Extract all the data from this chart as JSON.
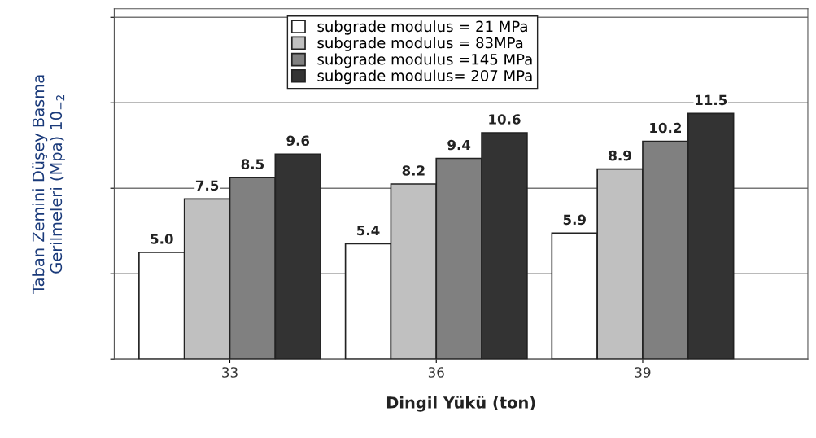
{
  "chart_data": {
    "type": "bar",
    "xlabel": "Dingil Yükü (ton)",
    "ylabel": "Taban Zemini Düşey Basma\nGerilmeleri (Mpa) 10$_{−2}$",
    "categories": [
      "33",
      "36",
      "39"
    ],
    "series": [
      {
        "name": "subgrade modulus = 21 MPa",
        "color": "#ffffff",
        "values": [
          5.0,
          5.4,
          5.9
        ],
        "value_labels": [
          "5.0",
          "5.4",
          "5.9"
        ]
      },
      {
        "name": "subgrade modulus = 83MPa",
        "color": "#c0c0c0",
        "values": [
          7.5,
          8.2,
          8.9
        ],
        "value_labels": [
          "7.5",
          "8.2",
          "8.9"
        ]
      },
      {
        "name": "subgrade modulus =145 MPa",
        "color": "#808080",
        "values": [
          8.5,
          9.4,
          10.2
        ],
        "value_labels": [
          "8.5",
          "9.4",
          "10.2"
        ]
      },
      {
        "name": "subgrade modulus= 207 MPa",
        "color": "#333333",
        "values": [
          9.6,
          10.6,
          11.5
        ],
        "value_labels": [
          "9.6",
          "10.6",
          "11.5"
        ]
      }
    ],
    "ylim": [
      0,
      16.4
    ],
    "yticks": [
      {
        "value": 0,
        "label": null
      },
      {
        "value": 4,
        "label": null
      },
      {
        "value": 8,
        "label": null
      },
      {
        "value": 12,
        "label": null
      },
      {
        "value": 16,
        "label": null
      }
    ],
    "grid": "y",
    "legend": "top",
    "tick_labels": "x"
  }
}
